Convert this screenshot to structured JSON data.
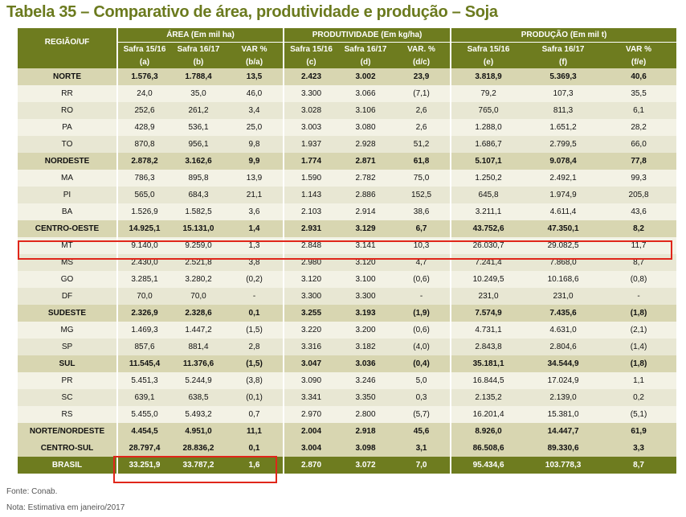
{
  "title": "Tabela 35 – Comparativo de área, produtividade e produção – Soja",
  "header": {
    "region": "REGIÃO/UF",
    "groups": [
      "ÁREA (Em mil ha)",
      "PRODUTIVIDADE (Em kg/ha)",
      "PRODUÇÃO (Em mil t)"
    ],
    "subheaders": [
      "Safra 15/16",
      "Safra 16/17",
      "VAR %",
      "Safra 15/16",
      "Safra 16/17",
      "VAR. %",
      "Safra 15/16",
      "Safra 16/17",
      "VAR %"
    ],
    "codes": [
      "(a)",
      "(b)",
      "(b/a)",
      "(c)",
      "(d)",
      "(d/c)",
      "(e)",
      "(f)",
      "(f/e)"
    ]
  },
  "rows": [
    {
      "name": "NORTE",
      "type": "bold",
      "cells": [
        "1.576,3",
        "1.788,4",
        "13,5",
        "2.423",
        "3.002",
        "23,9",
        "3.818,9",
        "5.369,3",
        "40,6"
      ]
    },
    {
      "name": "RR",
      "type": "odd",
      "cells": [
        "24,0",
        "35,0",
        "46,0",
        "3.300",
        "3.066",
        "(7,1)",
        "79,2",
        "107,3",
        "35,5"
      ]
    },
    {
      "name": "RO",
      "type": "even",
      "cells": [
        "252,6",
        "261,2",
        "3,4",
        "3.028",
        "3.106",
        "2,6",
        "765,0",
        "811,3",
        "6,1"
      ]
    },
    {
      "name": "PA",
      "type": "odd",
      "cells": [
        "428,9",
        "536,1",
        "25,0",
        "3.003",
        "3.080",
        "2,6",
        "1.288,0",
        "1.651,2",
        "28,2"
      ]
    },
    {
      "name": "TO",
      "type": "even",
      "cells": [
        "870,8",
        "956,1",
        "9,8",
        "1.937",
        "2.928",
        "51,2",
        "1.686,7",
        "2.799,5",
        "66,0"
      ]
    },
    {
      "name": "NORDESTE",
      "type": "bold",
      "cells": [
        "2.878,2",
        "3.162,6",
        "9,9",
        "1.774",
        "2.871",
        "61,8",
        "5.107,1",
        "9.078,4",
        "77,8"
      ]
    },
    {
      "name": "MA",
      "type": "odd",
      "cells": [
        "786,3",
        "895,8",
        "13,9",
        "1.590",
        "2.782",
        "75,0",
        "1.250,2",
        "2.492,1",
        "99,3"
      ]
    },
    {
      "name": "PI",
      "type": "even",
      "cells": [
        "565,0",
        "684,3",
        "21,1",
        "1.143",
        "2.886",
        "152,5",
        "645,8",
        "1.974,9",
        "205,8"
      ]
    },
    {
      "name": "BA",
      "type": "odd",
      "cells": [
        "1.526,9",
        "1.582,5",
        "3,6",
        "2.103",
        "2.914",
        "38,6",
        "3.211,1",
        "4.611,4",
        "43,6"
      ]
    },
    {
      "name": "CENTRO-OESTE",
      "type": "bold",
      "cells": [
        "14.925,1",
        "15.131,0",
        "1,4",
        "2.931",
        "3.129",
        "6,7",
        "43.752,6",
        "47.350,1",
        "8,2"
      ]
    },
    {
      "name": "MT",
      "type": "odd",
      "cells": [
        "9.140,0",
        "9.259,0",
        "1,3",
        "2.848",
        "3.141",
        "10,3",
        "26.030,7",
        "29.082,5",
        "11,7"
      ]
    },
    {
      "name": "MS",
      "type": "even",
      "cells": [
        "2.430,0",
        "2.521,8",
        "3,8",
        "2.980",
        "3.120",
        "4,7",
        "7.241,4",
        "7.868,0",
        "8,7"
      ]
    },
    {
      "name": "GO",
      "type": "odd",
      "cells": [
        "3.285,1",
        "3.280,2",
        "(0,2)",
        "3.120",
        "3.100",
        "(0,6)",
        "10.249,5",
        "10.168,6",
        "(0,8)"
      ]
    },
    {
      "name": "DF",
      "type": "even",
      "cells": [
        "70,0",
        "70,0",
        "-",
        "3.300",
        "3.300",
        "-",
        "231,0",
        "231,0",
        "-"
      ]
    },
    {
      "name": "SUDESTE",
      "type": "bold",
      "cells": [
        "2.326,9",
        "2.328,6",
        "0,1",
        "3.255",
        "3.193",
        "(1,9)",
        "7.574,9",
        "7.435,6",
        "(1,8)"
      ]
    },
    {
      "name": "MG",
      "type": "odd",
      "cells": [
        "1.469,3",
        "1.447,2",
        "(1,5)",
        "3.220",
        "3.200",
        "(0,6)",
        "4.731,1",
        "4.631,0",
        "(2,1)"
      ]
    },
    {
      "name": "SP",
      "type": "even",
      "cells": [
        "857,6",
        "881,4",
        "2,8",
        "3.316",
        "3.182",
        "(4,0)",
        "2.843,8",
        "2.804,6",
        "(1,4)"
      ]
    },
    {
      "name": "SUL",
      "type": "bold",
      "cells": [
        "11.545,4",
        "11.376,6",
        "(1,5)",
        "3.047",
        "3.036",
        "(0,4)",
        "35.181,1",
        "34.544,9",
        "(1,8)"
      ]
    },
    {
      "name": "PR",
      "type": "odd",
      "cells": [
        "5.451,3",
        "5.244,9",
        "(3,8)",
        "3.090",
        "3.246",
        "5,0",
        "16.844,5",
        "17.024,9",
        "1,1"
      ]
    },
    {
      "name": "SC",
      "type": "even",
      "cells": [
        "639,1",
        "638,5",
        "(0,1)",
        "3.341",
        "3.350",
        "0,3",
        "2.135,2",
        "2.139,0",
        "0,2"
      ]
    },
    {
      "name": "RS",
      "type": "odd",
      "cells": [
        "5.455,0",
        "5.493,2",
        "0,7",
        "2.970",
        "2.800",
        "(5,7)",
        "16.201,4",
        "15.381,0",
        "(5,1)"
      ]
    },
    {
      "name": "NORTE/NORDESTE",
      "type": "bold",
      "cells": [
        "4.454,5",
        "4.951,0",
        "11,1",
        "2.004",
        "2.918",
        "45,6",
        "8.926,0",
        "14.447,7",
        "61,9"
      ]
    },
    {
      "name": "CENTRO-SUL",
      "type": "bold",
      "cells": [
        "28.797,4",
        "28.836,2",
        "0,1",
        "3.004",
        "3.098",
        "3,1",
        "86.508,6",
        "89.330,6",
        "3,3"
      ]
    },
    {
      "name": "BRASIL",
      "type": "brasil",
      "cells": [
        "33.251,9",
        "33.787,2",
        "1,6",
        "2.870",
        "3.072",
        "7,0",
        "95.434,6",
        "103.778,3",
        "8,7"
      ]
    }
  ],
  "footer": {
    "source": "Fonte: Conab.",
    "note": "Nota: Estimativa em janeiro/2017"
  },
  "colors": {
    "header_green": "#6e7c1f",
    "title_green": "#6b7a1e",
    "regional_row": "#d8d6b1",
    "row_light": "#f3f2e5",
    "row_dark": "#e8e7d3",
    "highlight_red": "#e0261a"
  }
}
